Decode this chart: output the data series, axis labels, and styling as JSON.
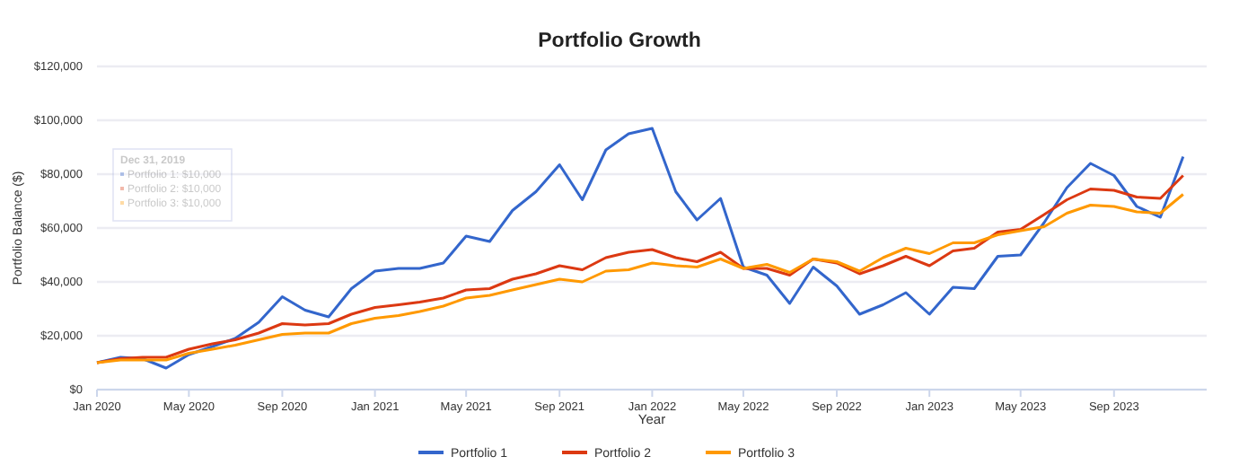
{
  "chart_data": {
    "type": "line",
    "title": "Portfolio Growth",
    "xlabel": "Year",
    "ylabel": "Portfolio Balance ($)",
    "x": [
      "2020-01",
      "2020-02",
      "2020-03",
      "2020-04",
      "2020-05",
      "2020-06",
      "2020-07",
      "2020-08",
      "2020-09",
      "2020-10",
      "2020-11",
      "2020-12",
      "2021-01",
      "2021-02",
      "2021-03",
      "2021-04",
      "2021-05",
      "2021-06",
      "2021-07",
      "2021-08",
      "2021-09",
      "2021-10",
      "2021-11",
      "2021-12",
      "2022-01",
      "2022-02",
      "2022-03",
      "2022-04",
      "2022-05",
      "2022-06",
      "2022-07",
      "2022-08",
      "2022-09",
      "2022-10",
      "2022-11",
      "2022-12",
      "2023-01",
      "2023-02",
      "2023-03",
      "2023-04",
      "2023-05",
      "2023-06",
      "2023-07",
      "2023-08",
      "2023-09",
      "2023-10",
      "2023-11",
      "2023-12"
    ],
    "series": [
      {
        "name": "Portfolio 1",
        "color": "#3366cc",
        "values": [
          10000,
          12000,
          11500,
          8000,
          13000,
          16000,
          19000,
          25000,
          34500,
          29500,
          27000,
          37500,
          44000,
          45000,
          45000,
          47000,
          57000,
          55000,
          66500,
          73500,
          83500,
          70500,
          89000,
          95000,
          97000,
          73500,
          63000,
          71000,
          45500,
          42500,
          32000,
          45500,
          38500,
          28000,
          31500,
          36000,
          28000,
          38000,
          37500,
          49500,
          50000,
          62000,
          75000,
          84000,
          79500,
          68000,
          64000,
          86500
        ]
      },
      {
        "name": "Portfolio 2",
        "color": "#dc3912",
        "values": [
          10000,
          11500,
          12000,
          12000,
          15000,
          17000,
          18500,
          21000,
          24500,
          24000,
          24500,
          28000,
          30500,
          31500,
          32500,
          34000,
          37000,
          37500,
          41000,
          43000,
          46000,
          44500,
          49000,
          51000,
          52000,
          49000,
          47500,
          51000,
          45000,
          45000,
          42500,
          48500,
          47000,
          43000,
          46000,
          49500,
          46000,
          51500,
          52500,
          58500,
          59500,
          65000,
          70500,
          74500,
          74000,
          71500,
          71000,
          79500
        ]
      },
      {
        "name": "Portfolio 3",
        "color": "#ff9900",
        "values": [
          10000,
          11000,
          11000,
          11000,
          13500,
          15000,
          16500,
          18500,
          20500,
          21000,
          21000,
          24500,
          26500,
          27500,
          29000,
          31000,
          34000,
          35000,
          37000,
          39000,
          41000,
          40000,
          44000,
          44500,
          47000,
          46000,
          45500,
          48500,
          45000,
          46500,
          43500,
          48500,
          47500,
          44000,
          49000,
          52500,
          50500,
          54500,
          54500,
          57500,
          59000,
          60500,
          65500,
          68500,
          68000,
          66000,
          65500,
          72500
        ]
      }
    ],
    "xlim": [
      "2020-01",
      "2024-01"
    ],
    "xticks": [
      {
        "value": "2020-01",
        "label": "Jan 2020"
      },
      {
        "value": "2020-05",
        "label": "May 2020"
      },
      {
        "value": "2020-09",
        "label": "Sep 2020"
      },
      {
        "value": "2021-01",
        "label": "Jan 2021"
      },
      {
        "value": "2021-05",
        "label": "May 2021"
      },
      {
        "value": "2021-09",
        "label": "Sep 2021"
      },
      {
        "value": "2022-01",
        "label": "Jan 2022"
      },
      {
        "value": "2022-05",
        "label": "May 2022"
      },
      {
        "value": "2022-09",
        "label": "Sep 2022"
      },
      {
        "value": "2023-01",
        "label": "Jan 2023"
      },
      {
        "value": "2023-05",
        "label": "May 2023"
      },
      {
        "value": "2023-09",
        "label": "Sep 2023"
      }
    ],
    "ylim": [
      0,
      120000
    ],
    "yticks": [
      {
        "value": 0,
        "label": "$0"
      },
      {
        "value": 20000,
        "label": "$20,000"
      },
      {
        "value": 40000,
        "label": "$40,000"
      },
      {
        "value": 60000,
        "label": "$60,000"
      },
      {
        "value": 80000,
        "label": "$80,000"
      },
      {
        "value": 100000,
        "label": "$100,000"
      },
      {
        "value": 120000,
        "label": "$120,000"
      }
    ],
    "grid": "y",
    "legend": "bottom",
    "marker": "none",
    "line_style": "solid",
    "annotations": [
      "Dec 31, 2019",
      "Portfolio 1: $10,000",
      "Portfolio 2: $10,000",
      "Portfolio 3: $10,000"
    ]
  }
}
